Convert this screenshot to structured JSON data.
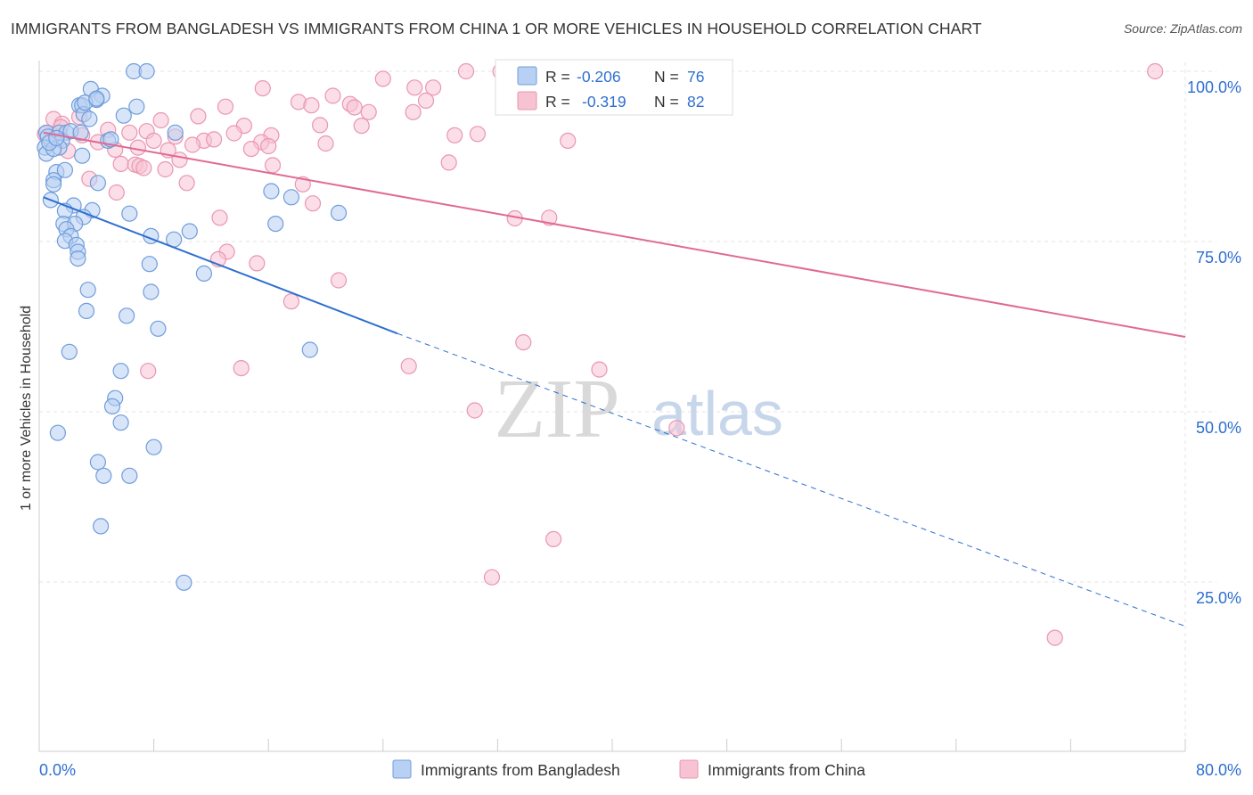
{
  "header": {
    "title": "IMMIGRANTS FROM BANGLADESH VS IMMIGRANTS FROM CHINA 1 OR MORE VEHICLES IN HOUSEHOLD CORRELATION CHART",
    "source": "Source: ZipAtlas.com"
  },
  "watermark": {
    "zip": "ZIP",
    "atlas": "atlas"
  },
  "colors": {
    "bangladesh_fill": "#b8d0f3",
    "bangladesh_stroke": "#6f9ddb",
    "bangladesh_line": "#2e6fd0",
    "china_fill": "#f7c3d3",
    "china_stroke": "#e996b2",
    "china_line": "#e06a94",
    "value_blue": "#2e6fd0",
    "grid": "#e3e3e3"
  },
  "legend_box": {
    "rows": [
      {
        "r_label": "R =",
        "r_value": "-0.206",
        "n_label": "N =",
        "n_value": "76"
      },
      {
        "r_label": "R =",
        "r_value": "-0.319",
        "n_label": "N =",
        "n_value": "82"
      }
    ]
  },
  "chart_data": {
    "type": "scatter",
    "title": "IMMIGRANTS FROM BANGLADESH VS IMMIGRANTS FROM CHINA 1 OR MORE VEHICLES IN HOUSEHOLD CORRELATION CHART",
    "xlabel": "",
    "ylabel": "1 or more Vehicles in Household",
    "xlim": [
      0,
      80
    ],
    "ylim": [
      0,
      105
    ],
    "x_tick_labels": [
      "0.0%",
      "80.0%"
    ],
    "y_ticks": [
      25,
      50,
      75,
      100
    ],
    "y_tick_labels": [
      "25.0%",
      "50.0%",
      "75.0%",
      "100.0%"
    ],
    "grid": true,
    "legend_position": "bottom-center",
    "series": [
      {
        "name": "Immigrants from Bangladesh",
        "R": -0.206,
        "N": 76,
        "trend": {
          "x0": 0.3,
          "y0": 81.5,
          "x1": 25,
          "y1": 61.5,
          "dash_to_x": 80,
          "dash_to_y": 18.5
        },
        "points": [
          [
            6.6,
            100
          ],
          [
            7.5,
            100
          ],
          [
            3.6,
            97.4
          ],
          [
            4.4,
            96.4
          ],
          [
            4.0,
            95.8
          ],
          [
            2.8,
            95.0
          ],
          [
            3.0,
            95.0
          ],
          [
            6.8,
            94.8
          ],
          [
            3.1,
            93.7
          ],
          [
            5.9,
            93.5
          ],
          [
            0.5,
            91.0
          ],
          [
            1.4,
            91.0
          ],
          [
            1.9,
            91.0
          ],
          [
            9.5,
            91.0
          ],
          [
            0.6,
            90.4
          ],
          [
            1.6,
            89.8
          ],
          [
            4.8,
            89.8
          ],
          [
            0.4,
            88.8
          ],
          [
            1.4,
            88.8
          ],
          [
            0.5,
            87.9
          ],
          [
            3.0,
            87.6
          ],
          [
            1.2,
            85.2
          ],
          [
            1.0,
            84.0
          ],
          [
            4.1,
            83.6
          ],
          [
            1.0,
            83.4
          ],
          [
            16.2,
            82.4
          ],
          [
            17.6,
            81.5
          ],
          [
            0.8,
            81.1
          ],
          [
            2.4,
            80.3
          ],
          [
            1.8,
            79.5
          ],
          [
            3.7,
            79.6
          ],
          [
            6.3,
            79.1
          ],
          [
            20.9,
            79.2
          ],
          [
            3.1,
            78.6
          ],
          [
            1.7,
            77.6
          ],
          [
            2.5,
            77.6
          ],
          [
            16.5,
            77.6
          ],
          [
            1.9,
            76.8
          ],
          [
            10.5,
            76.5
          ],
          [
            2.2,
            75.8
          ],
          [
            7.8,
            75.8
          ],
          [
            1.8,
            75.1
          ],
          [
            9.4,
            75.3
          ],
          [
            2.6,
            74.5
          ],
          [
            2.7,
            73.5
          ],
          [
            2.7,
            72.5
          ],
          [
            7.7,
            71.7
          ],
          [
            11.5,
            70.3
          ],
          [
            3.4,
            67.9
          ],
          [
            7.8,
            67.6
          ],
          [
            3.3,
            64.8
          ],
          [
            6.1,
            64.1
          ],
          [
            8.3,
            62.2
          ],
          [
            2.1,
            58.8
          ],
          [
            18.9,
            59.1
          ],
          [
            5.7,
            56.0
          ],
          [
            5.3,
            52.0
          ],
          [
            5.1,
            50.8
          ],
          [
            5.7,
            48.4
          ],
          [
            1.3,
            46.9
          ],
          [
            8.0,
            44.8
          ],
          [
            4.1,
            42.6
          ],
          [
            4.5,
            40.6
          ],
          [
            6.3,
            40.6
          ],
          [
            4.3,
            33.2
          ],
          [
            10.1,
            24.9
          ],
          [
            1.0,
            88.6
          ],
          [
            2.2,
            91.2
          ],
          [
            3.2,
            95.4
          ],
          [
            4.0,
            96.0
          ],
          [
            5.0,
            90.0
          ],
          [
            1.8,
            85.5
          ],
          [
            0.7,
            89.5
          ],
          [
            2.9,
            91.0
          ],
          [
            1.2,
            90.2
          ],
          [
            3.5,
            93.0
          ]
        ]
      },
      {
        "name": "Immigrants from China",
        "R": -0.319,
        "N": 82,
        "trend": {
          "x0": 0.3,
          "y0": 91,
          "x1": 80,
          "y1": 61
        },
        "points": [
          [
            29.8,
            100
          ],
          [
            32.2,
            100
          ],
          [
            33.0,
            100
          ],
          [
            77.9,
            100
          ],
          [
            24.0,
            98.9
          ],
          [
            15.6,
            97.5
          ],
          [
            26.2,
            97.6
          ],
          [
            27.5,
            97.6
          ],
          [
            20.5,
            96.4
          ],
          [
            27.0,
            95.7
          ],
          [
            18.1,
            95.5
          ],
          [
            19.0,
            95.0
          ],
          [
            21.7,
            95.2
          ],
          [
            22.0,
            94.7
          ],
          [
            23.0,
            94.0
          ],
          [
            26.1,
            94.0
          ],
          [
            11.1,
            93.4
          ],
          [
            1.0,
            93.0
          ],
          [
            8.5,
            92.8
          ],
          [
            1.6,
            92.3
          ],
          [
            19.6,
            92.1
          ],
          [
            14.3,
            92.0
          ],
          [
            22.5,
            92.0
          ],
          [
            7.5,
            91.2
          ],
          [
            6.3,
            91.0
          ],
          [
            9.5,
            90.4
          ],
          [
            0.4,
            90.8
          ],
          [
            13.6,
            90.9
          ],
          [
            16.2,
            90.6
          ],
          [
            3.0,
            90.6
          ],
          [
            30.6,
            90.8
          ],
          [
            29.0,
            90.6
          ],
          [
            8.0,
            89.8
          ],
          [
            11.5,
            89.8
          ],
          [
            12.2,
            90.0
          ],
          [
            15.5,
            89.6
          ],
          [
            4.1,
            89.6
          ],
          [
            36.9,
            89.8
          ],
          [
            20.0,
            89.4
          ],
          [
            10.7,
            89.2
          ],
          [
            16.0,
            89.0
          ],
          [
            6.9,
            88.8
          ],
          [
            5.3,
            88.5
          ],
          [
            14.8,
            88.6
          ],
          [
            2.0,
            88.3
          ],
          [
            9.0,
            88.4
          ],
          [
            9.8,
            87.0
          ],
          [
            28.6,
            86.6
          ],
          [
            5.7,
            86.4
          ],
          [
            6.7,
            86.3
          ],
          [
            7.0,
            86.1
          ],
          [
            16.3,
            86.2
          ],
          [
            7.3,
            85.8
          ],
          [
            8.8,
            85.6
          ],
          [
            3.5,
            84.2
          ],
          [
            10.3,
            83.6
          ],
          [
            18.4,
            83.4
          ],
          [
            5.4,
            82.2
          ],
          [
            19.1,
            80.6
          ],
          [
            12.6,
            78.5
          ],
          [
            33.2,
            78.4
          ],
          [
            35.6,
            78.5
          ],
          [
            13.1,
            73.5
          ],
          [
            12.5,
            72.4
          ],
          [
            15.2,
            71.8
          ],
          [
            20.9,
            69.3
          ],
          [
            17.6,
            66.2
          ],
          [
            33.8,
            60.2
          ],
          [
            25.8,
            56.7
          ],
          [
            7.6,
            56.0
          ],
          [
            14.1,
            56.4
          ],
          [
            39.1,
            56.2
          ],
          [
            30.4,
            50.2
          ],
          [
            44.5,
            47.6
          ],
          [
            35.9,
            31.3
          ],
          [
            31.6,
            25.7
          ],
          [
            70.9,
            16.8
          ],
          [
            1.5,
            91.8
          ],
          [
            2.8,
            93.3
          ],
          [
            4.8,
            91.4
          ],
          [
            0.8,
            89.9
          ],
          [
            13.0,
            94.8
          ]
        ]
      }
    ]
  }
}
